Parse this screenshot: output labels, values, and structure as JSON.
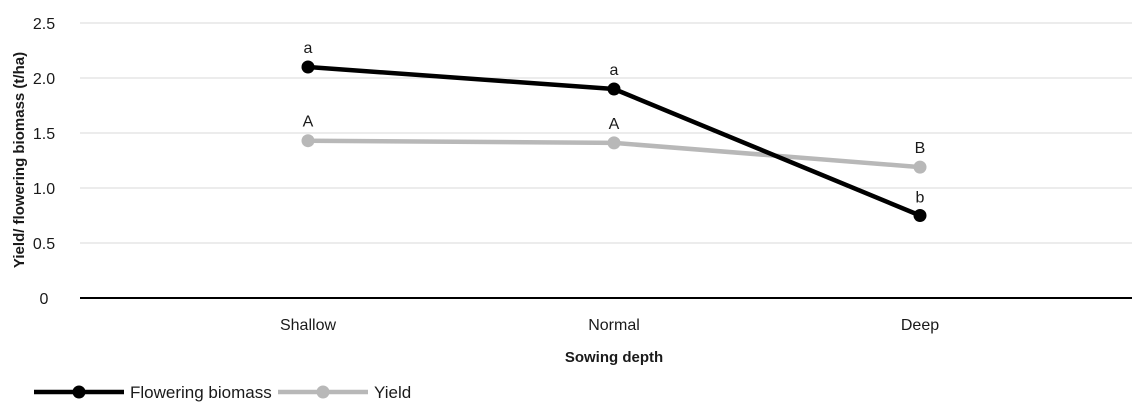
{
  "chart_data": {
    "type": "line",
    "categories": [
      "Shallow",
      "Normal",
      "Deep"
    ],
    "series": [
      {
        "name": "Flowering biomass",
        "values": [
          2.1,
          1.9,
          0.75
        ],
        "point_labels": [
          "a",
          "a",
          "b"
        ],
        "color": "#000000"
      },
      {
        "name": "Yield",
        "values": [
          1.43,
          1.41,
          1.19
        ],
        "point_labels": [
          "A",
          "A",
          "B"
        ],
        "color": "#b8b8b8"
      }
    ],
    "y_ticks": [
      "0",
      "0.5",
      "1.0",
      "1.5",
      "2.0",
      "2.5"
    ],
    "ylim": [
      0,
      2.5
    ],
    "xlabel": "Sowing depth",
    "ylabel": "Yield/ flowering biomass (t/ha)",
    "grid": true,
    "legend_position": "bottom-left"
  }
}
